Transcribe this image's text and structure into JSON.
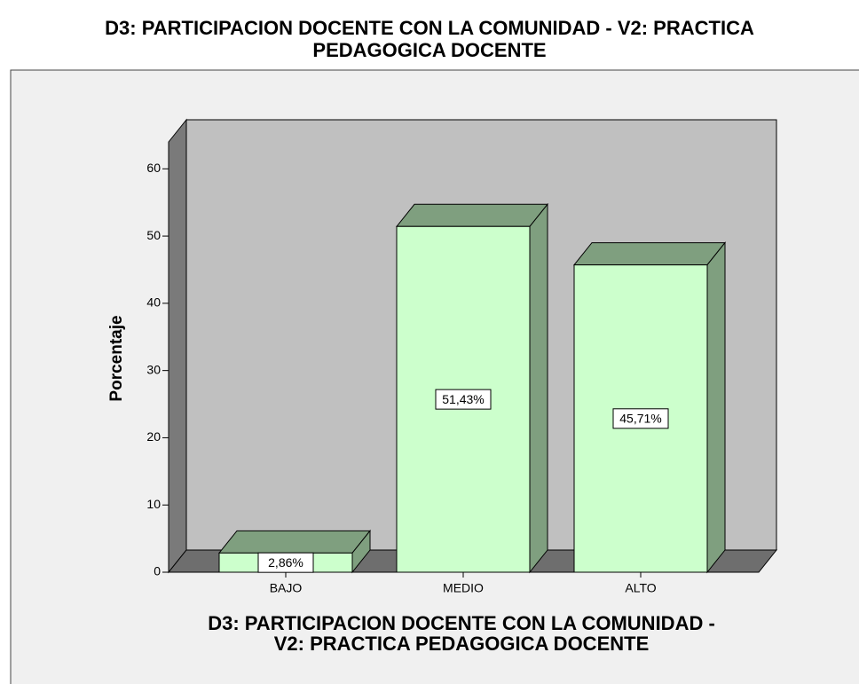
{
  "chart_data": {
    "type": "bar3d",
    "title": [
      "D3: PARTICIPACION DOCENTE CON LA COMUNIDAD - V2: PRACTICA",
      "PEDAGOGICA DOCENTE"
    ],
    "x_label": [
      "D3: PARTICIPACION DOCENTE CON LA COMUNIDAD  -",
      "V2: PRACTICA PEDAGOGICA DOCENTE"
    ],
    "y_label": "Porcentaje",
    "categories": [
      "BAJO",
      "MEDIO",
      "ALTO"
    ],
    "values": [
      2.86,
      51.43,
      45.71
    ],
    "value_labels": [
      "2,86%",
      "51,43%",
      "45,71%"
    ],
    "color": "#ccffcc",
    "ylim": [
      0,
      64
    ],
    "yticks": [
      0,
      10,
      20,
      30,
      40,
      50,
      60
    ]
  }
}
